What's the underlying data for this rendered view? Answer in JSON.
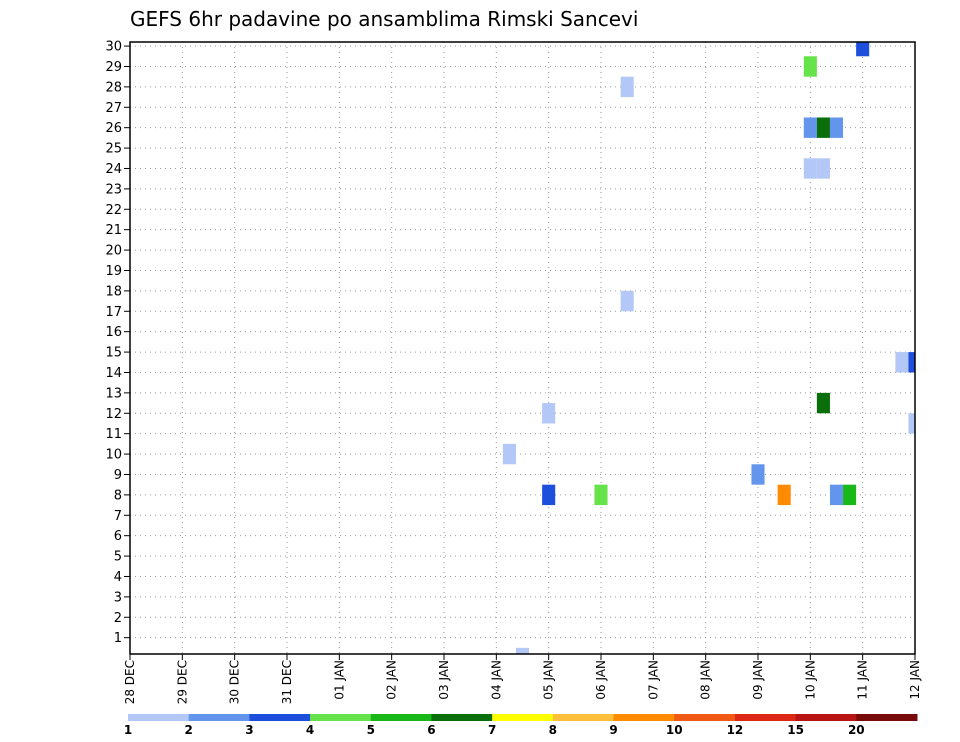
{
  "chart_data": {
    "type": "heatmap",
    "title": "GEFS 6hr padavine po ansamblima Rimski Sancevi",
    "xlabel": "",
    "ylabel": "",
    "x_ticks": [
      "28 DEC",
      "29 DEC",
      "30 DEC",
      "31 DEC",
      "01 JAN",
      "02 JAN",
      "03 JAN",
      "04 JAN",
      "05 JAN",
      "06 JAN",
      "07 JAN",
      "08 JAN",
      "09 JAN",
      "10 JAN",
      "11 JAN",
      "12 JAN"
    ],
    "x_range_days": [
      0,
      15
    ],
    "y_ticks": [
      1,
      2,
      3,
      4,
      5,
      6,
      7,
      8,
      9,
      10,
      11,
      12,
      13,
      14,
      15,
      16,
      17,
      18,
      19,
      20,
      21,
      22,
      23,
      24,
      25,
      26,
      27,
      28,
      29,
      30
    ],
    "y_range": [
      0.2,
      30.2
    ],
    "grid": true,
    "colorbar": {
      "labels": [
        "1",
        "2",
        "3",
        "4",
        "5",
        "6",
        "7",
        "8",
        "9",
        "10",
        "12",
        "15",
        "20"
      ],
      "colors": [
        "#b3c8f7",
        "#6495ed",
        "#1e4fdc",
        "#66e24a",
        "#18b818",
        "#0a6e0a",
        "#ffff00",
        "#ffbf3c",
        "#ff8c00",
        "#f05a14",
        "#dc2814",
        "#b91414",
        "#780a0a"
      ]
    },
    "cells": [
      {
        "day": 7.5,
        "member": 0,
        "color": "#b3c8f7"
      },
      {
        "day": 7.25,
        "member": 10,
        "color": "#b3c8f7"
      },
      {
        "day": 8.0,
        "member": 8,
        "color": "#1e4fdc"
      },
      {
        "day": 8.0,
        "member": 12,
        "color": "#b3c8f7"
      },
      {
        "day": 9.0,
        "member": 8,
        "color": "#66e24a"
      },
      {
        "day": 9.5,
        "member": 17.5,
        "color": "#b3c8f7"
      },
      {
        "day": 9.5,
        "member": 28,
        "color": "#b3c8f7"
      },
      {
        "day": 12.0,
        "member": 9,
        "color": "#6495ed"
      },
      {
        "day": 12.5,
        "member": 8,
        "color": "#ff8c00"
      },
      {
        "day": 13.0,
        "member": 29,
        "color": "#66e24a"
      },
      {
        "day": 13.0,
        "member": 26,
        "color": "#6495ed"
      },
      {
        "day": 13.25,
        "member": 26,
        "color": "#0a6e0a"
      },
      {
        "day": 13.5,
        "member": 26,
        "color": "#6495ed"
      },
      {
        "day": 13.0,
        "member": 24,
        "color": "#b3c8f7"
      },
      {
        "day": 13.25,
        "member": 24,
        "color": "#b3c8f7"
      },
      {
        "day": 13.25,
        "member": 12.5,
        "color": "#0a6e0a"
      },
      {
        "day": 13.5,
        "member": 8,
        "color": "#6495ed"
      },
      {
        "day": 13.75,
        "member": 8,
        "color": "#18b818"
      },
      {
        "day": 14.0,
        "member": 30,
        "color": "#1e4fdc"
      },
      {
        "day": 14.75,
        "member": 14.5,
        "color": "#b3c8f7"
      },
      {
        "day": 15.0,
        "member": 14.5,
        "color": "#1e4fdc"
      },
      {
        "day": 15.0,
        "member": 11.5,
        "color": "#b3c8f7"
      }
    ]
  }
}
